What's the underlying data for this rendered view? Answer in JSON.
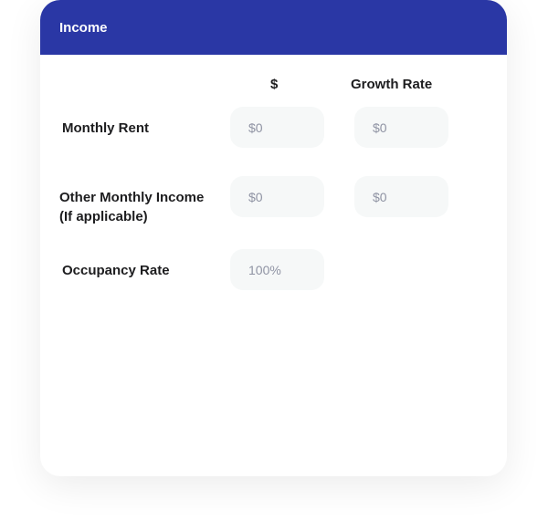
{
  "header": {
    "title": "Income"
  },
  "columns": {
    "amount": "$",
    "growth": "Growth Rate"
  },
  "rows": [
    {
      "label": "Monthly Rent",
      "amount_placeholder": "$0",
      "growth_placeholder": "$0"
    },
    {
      "label_line1": "Other Monthly Income",
      "label_line2": "(If applicable)",
      "amount_placeholder": "$0",
      "growth_placeholder": "$0"
    },
    {
      "label": "Occupancy Rate",
      "amount_placeholder": "100%"
    }
  ],
  "colors": {
    "header": "#2a37a5",
    "input_bg": "#f6f8f8"
  }
}
